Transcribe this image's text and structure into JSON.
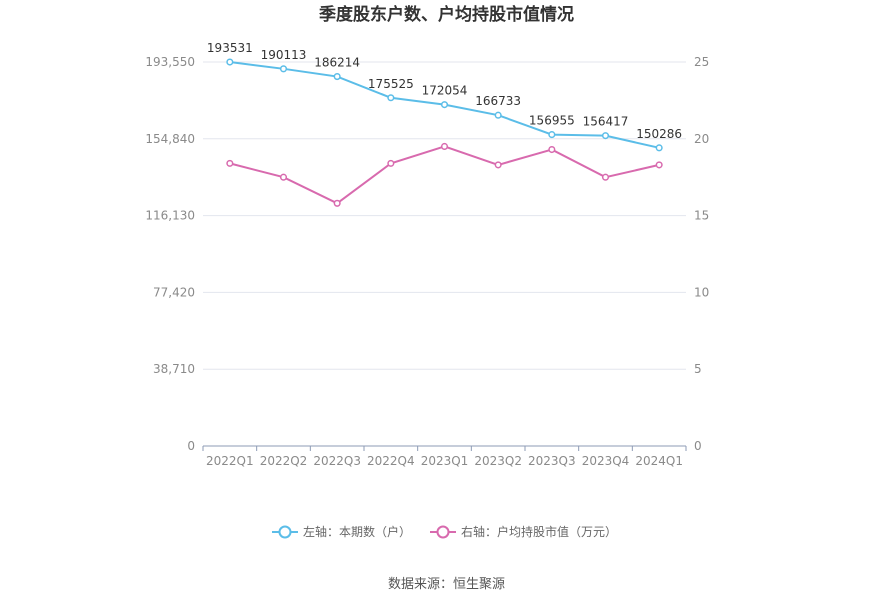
{
  "chart_data": {
    "type": "line",
    "title": "季度股东户数、户均持股市值情况",
    "categories": [
      "2022Q1",
      "2022Q2",
      "2022Q3",
      "2022Q4",
      "2023Q1",
      "2023Q2",
      "2023Q3",
      "2023Q4",
      "2024Q1"
    ],
    "left_axis": {
      "ylim": [
        0,
        193550
      ],
      "ticks": [
        0,
        38710,
        77420,
        116130,
        154840,
        193550
      ],
      "tick_labels": [
        "0",
        "38,710",
        "77,420",
        "116,130",
        "154,840",
        "193,550"
      ]
    },
    "right_axis": {
      "ylim": [
        0,
        25
      ],
      "ticks": [
        0,
        5,
        10,
        15,
        20,
        25
      ],
      "tick_labels": [
        "0",
        "5",
        "10",
        "15",
        "20",
        "25"
      ]
    },
    "series": [
      {
        "name": "左轴：本期数（户）",
        "axis": "left",
        "color": "#5bbde8",
        "values": [
          193531,
          190113,
          186214,
          175525,
          172054,
          166733,
          156955,
          156417,
          150286
        ],
        "labels": [
          "193531",
          "190113",
          "186214",
          "175525",
          "172054",
          "166733",
          "156955",
          "156417",
          "150286"
        ]
      },
      {
        "name": "右轴：户均持股市值（万元）",
        "axis": "right",
        "color": "#d86aae",
        "values": [
          18.4,
          17.5,
          15.8,
          18.4,
          19.5,
          18.3,
          19.3,
          17.5,
          18.3
        ]
      }
    ],
    "grid": true,
    "legend": "bottom-center"
  },
  "source": "数据来源：恒生聚源"
}
